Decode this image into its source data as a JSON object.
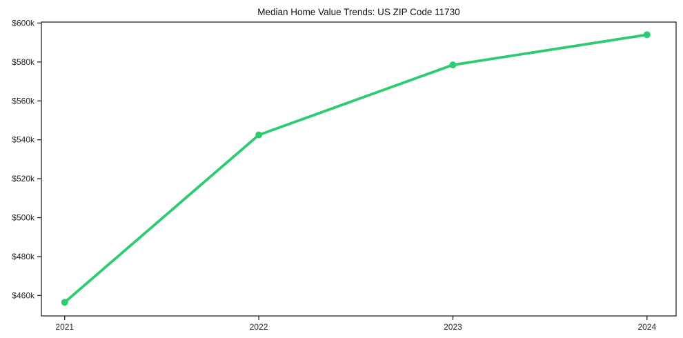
{
  "page": {
    "background": "#ffffff"
  },
  "chart_data": {
    "type": "line",
    "title": "Median Home Value Trends: US ZIP Code 11730",
    "x": [
      2021,
      2022,
      2023,
      2024
    ],
    "xtick_labels": [
      "2021",
      "2022",
      "2023",
      "2024"
    ],
    "series": [
      {
        "name": "median-home-value",
        "values": [
          456500,
          542500,
          578500,
          594000
        ],
        "color": "#2ecc71",
        "marker": "circle",
        "line_width": 3.8,
        "marker_radius": 5
      }
    ],
    "ytick_values": [
      460000,
      480000,
      500000,
      520000,
      540000,
      560000,
      580000,
      600000
    ],
    "ytick_labels": [
      "$460k",
      "$480k",
      "$500k",
      "$520k",
      "$540k",
      "$560k",
      "$580k",
      "$600k"
    ],
    "xlim": [
      2020.88,
      2024.15
    ],
    "ylim": [
      449500,
      600500
    ],
    "grid": false,
    "legend": "none",
    "axis_color": "#262626",
    "tick_length": 6,
    "title_color": "#111111",
    "tick_label_color": "#262626"
  }
}
